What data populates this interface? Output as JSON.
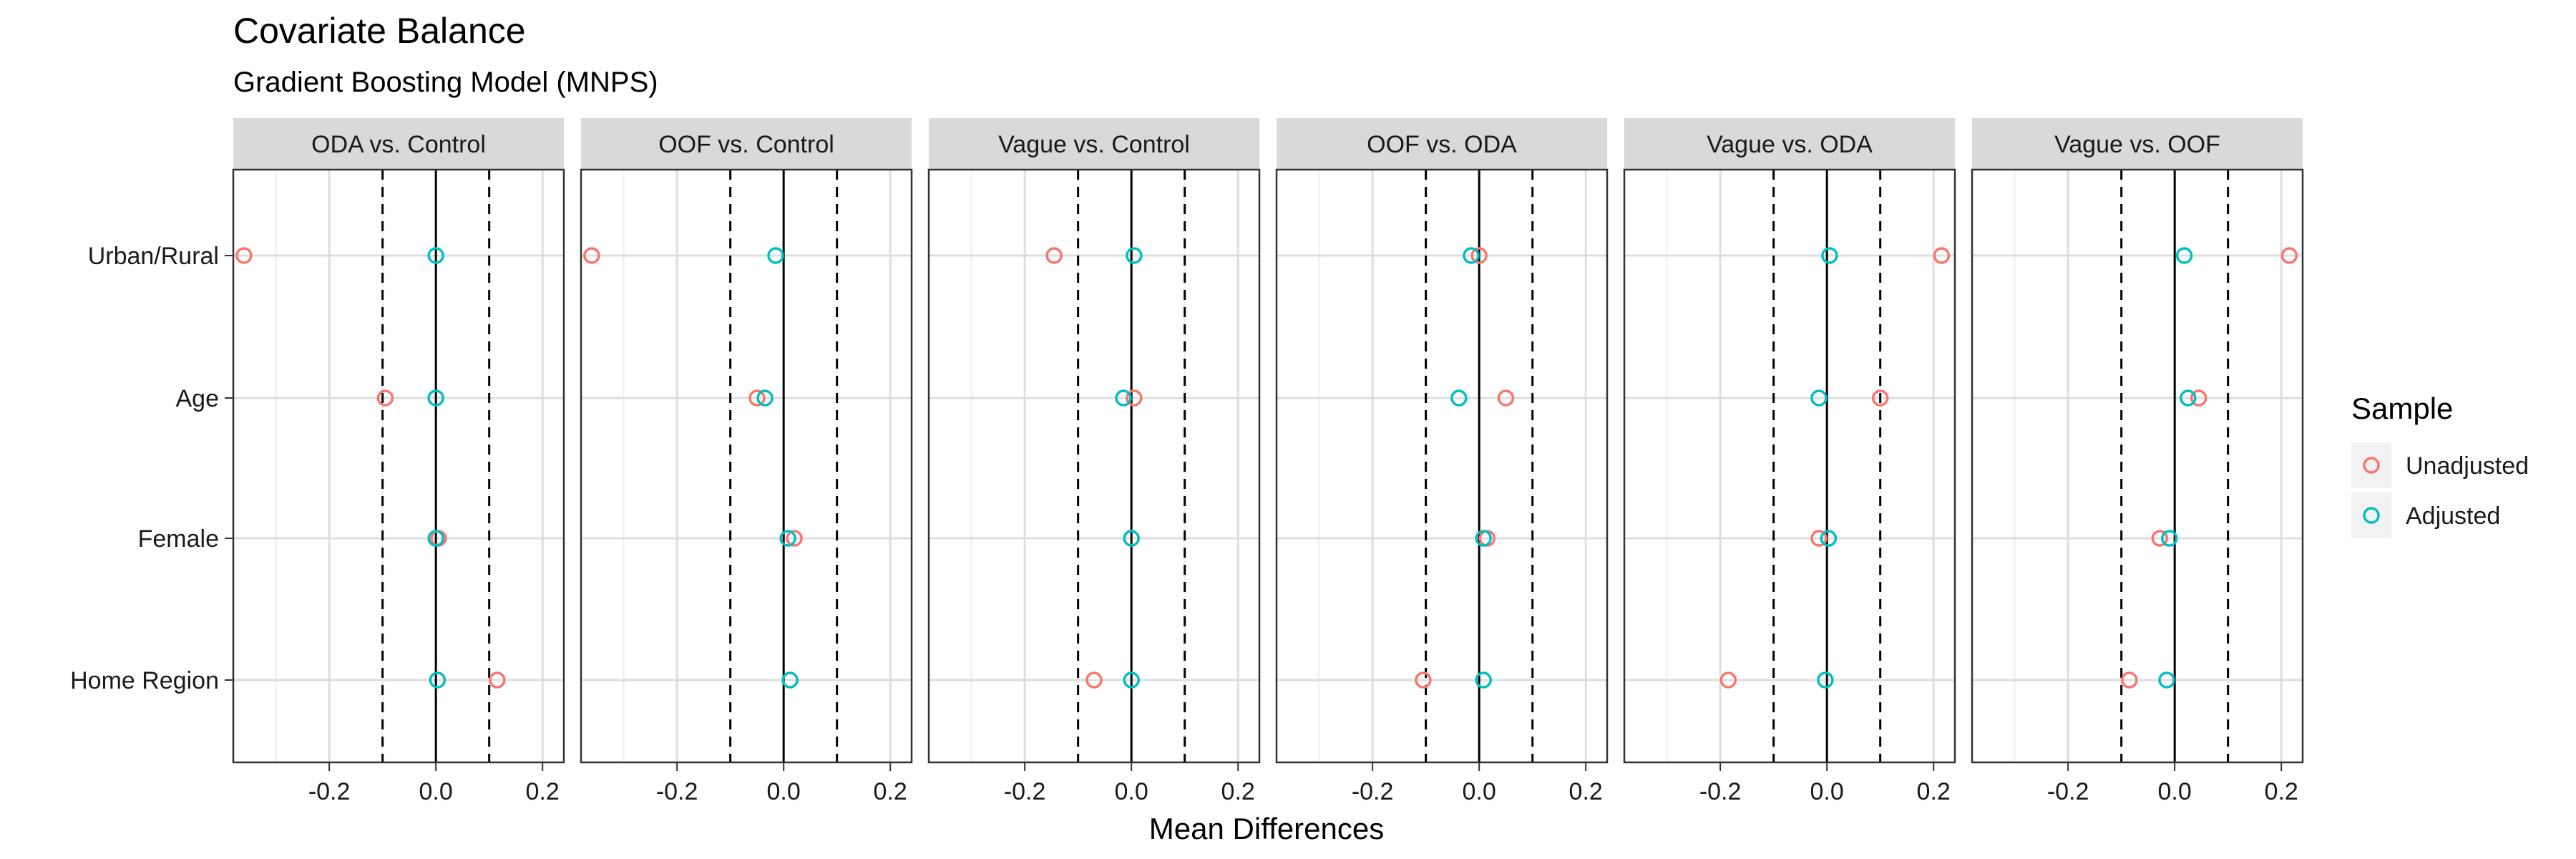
{
  "chart_data": {
    "type": "scatter",
    "title": "Covariate Balance",
    "subtitle": "Gradient Boosting Model (MNPS)",
    "xlabel": "Mean Differences",
    "ylabel": "",
    "xlim": [
      -0.38,
      0.24
    ],
    "xticks": [
      -0.2,
      0.0,
      0.2
    ],
    "xtick_labels": [
      "-0.2",
      "0.0",
      "0.2"
    ],
    "thresholds": [
      -0.1,
      0.1
    ],
    "covariates": [
      "Urban/Rural",
      "Age",
      "Female",
      "Home Region"
    ],
    "legend": {
      "title": "Sample",
      "position": "right",
      "entries": [
        "Unadjusted",
        "Adjusted"
      ]
    },
    "colors": {
      "Unadjusted": "#F8766D",
      "Adjusted": "#00BFC4"
    },
    "panels": [
      {
        "title": "ODA vs. Control",
        "series": [
          {
            "name": "Unadjusted",
            "values": [
              -0.36,
              -0.095,
              0.005,
              0.115
            ]
          },
          {
            "name": "Adjusted",
            "values": [
              0.0,
              0.0,
              0.0,
              0.003
            ]
          }
        ]
      },
      {
        "title": "OOF vs. Control",
        "series": [
          {
            "name": "Unadjusted",
            "values": [
              -0.36,
              -0.05,
              0.02,
              0.012
            ]
          },
          {
            "name": "Adjusted",
            "values": [
              -0.015,
              -0.035,
              0.008,
              0.012
            ]
          }
        ]
      },
      {
        "title": "Vague vs. Control",
        "series": [
          {
            "name": "Unadjusted",
            "values": [
              -0.145,
              0.005,
              0.0,
              -0.07
            ]
          },
          {
            "name": "Adjusted",
            "values": [
              0.005,
              -0.015,
              0.0,
              0.0
            ]
          }
        ]
      },
      {
        "title": "OOF vs. ODA",
        "series": [
          {
            "name": "Unadjusted",
            "values": [
              0.0,
              0.05,
              0.015,
              -0.105
            ]
          },
          {
            "name": "Adjusted",
            "values": [
              -0.015,
              -0.038,
              0.008,
              0.008
            ]
          }
        ]
      },
      {
        "title": "Vague vs. ODA",
        "series": [
          {
            "name": "Unadjusted",
            "values": [
              0.215,
              0.1,
              -0.015,
              -0.185
            ]
          },
          {
            "name": "Adjusted",
            "values": [
              0.005,
              -0.015,
              0.003,
              -0.003
            ]
          }
        ]
      },
      {
        "title": "Vague vs. OOF",
        "series": [
          {
            "name": "Unadjusted",
            "values": [
              0.215,
              0.045,
              -0.028,
              -0.085
            ]
          },
          {
            "name": "Adjusted",
            "values": [
              0.018,
              0.025,
              -0.01,
              -0.015
            ]
          }
        ]
      }
    ]
  }
}
